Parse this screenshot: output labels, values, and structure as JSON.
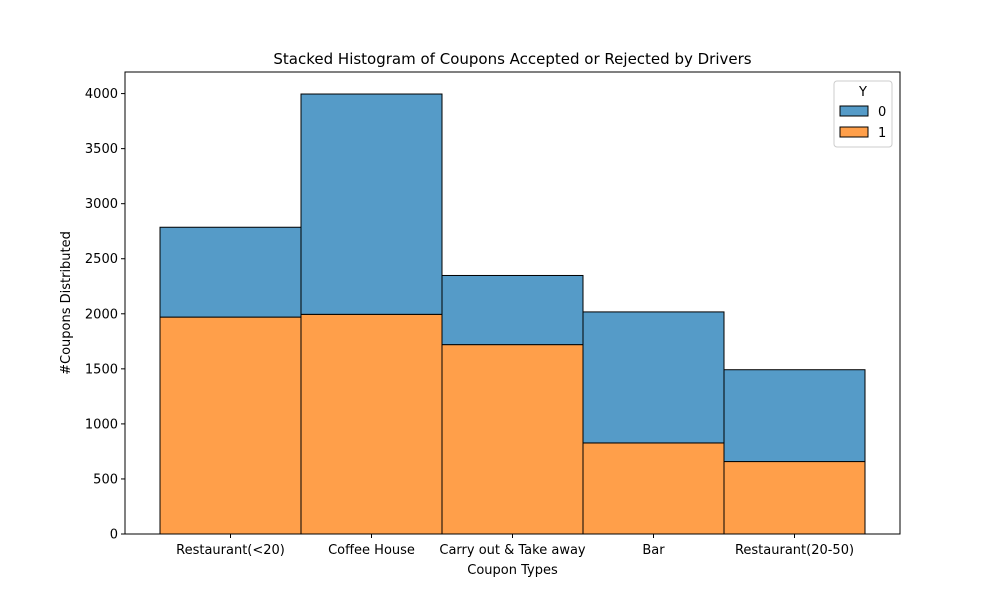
{
  "chart_data": {
    "type": "bar",
    "stacked": true,
    "title": "Stacked Histogram of Coupons Accepted or Rejected by Drivers",
    "xlabel": "Coupon Types",
    "ylabel": "#Coupons Distributed",
    "categories": [
      "Restaurant(<20)",
      "Coffee House",
      "Carry out & Take away",
      "Bar",
      "Restaurant(20-50)"
    ],
    "series": [
      {
        "name": "1",
        "values": [
          1970,
          1995,
          1720,
          827,
          658
        ],
        "color": "#ff9f4a"
      },
      {
        "name": "0",
        "values": [
          816,
          2001,
          628,
          1190,
          834
        ],
        "color": "#559bc8"
      }
    ],
    "ylim": [
      0,
      4196
    ],
    "yticks": [
      0,
      500,
      1000,
      1500,
      2000,
      2500,
      3000,
      3500,
      4000
    ],
    "grid": false,
    "legend": {
      "title": "Y",
      "placement": "top-right",
      "entries": [
        {
          "label": "0",
          "color": "#559bc8"
        },
        {
          "label": "1",
          "color": "#ff9f4a"
        }
      ]
    }
  }
}
